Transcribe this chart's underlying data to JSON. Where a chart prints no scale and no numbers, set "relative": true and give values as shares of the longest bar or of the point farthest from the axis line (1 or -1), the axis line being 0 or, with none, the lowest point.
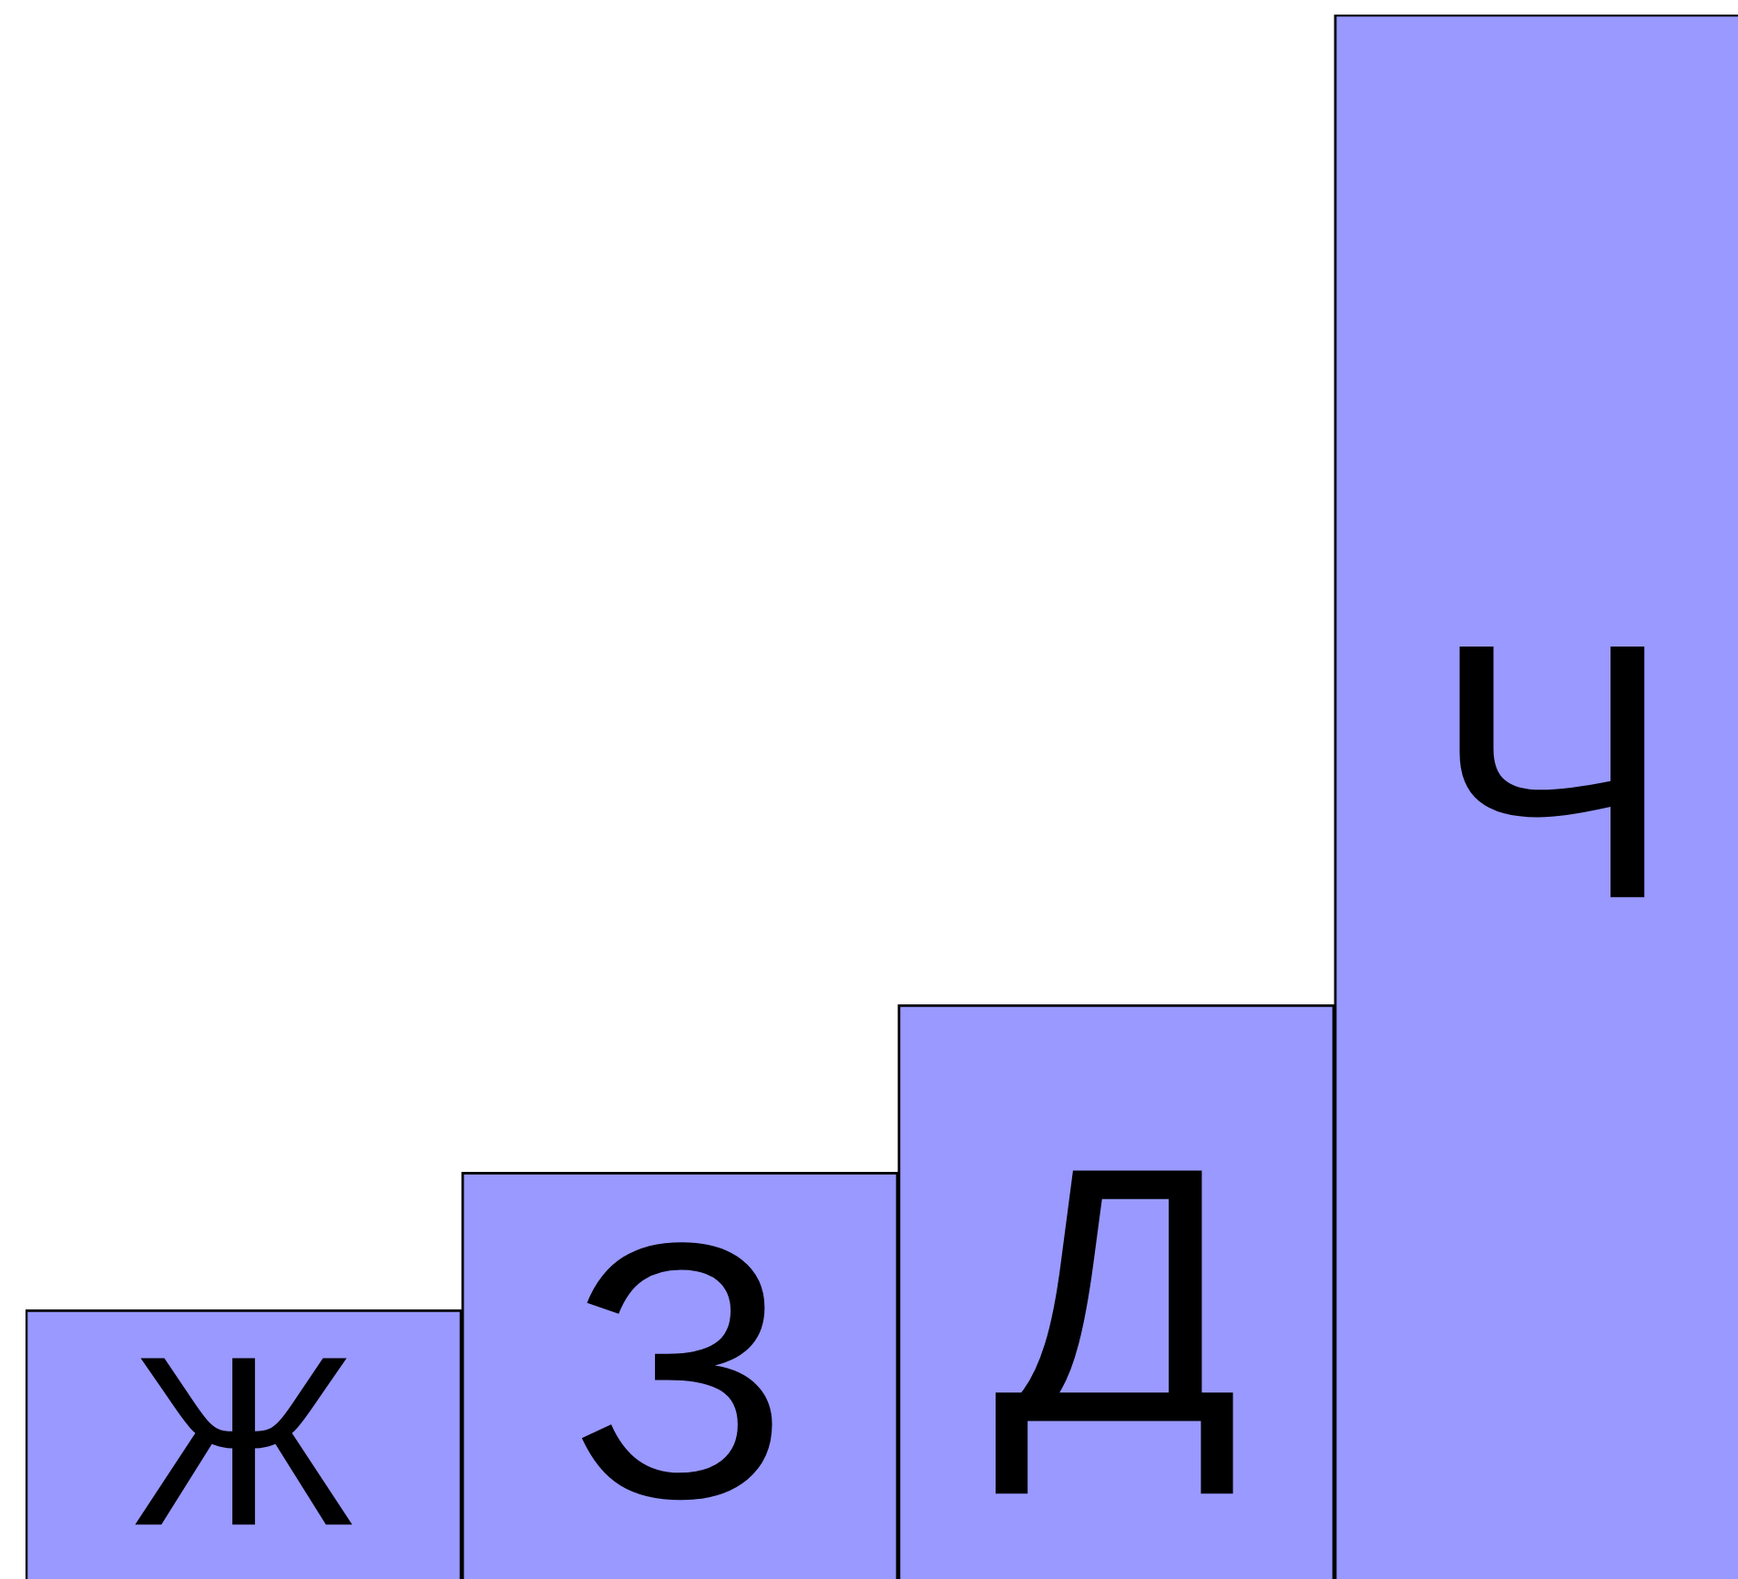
{
  "chart_data": {
    "type": "bar",
    "relative": true,
    "categories": [
      "Ж",
      "З",
      "Д",
      "Ч"
    ],
    "values": [
      0.172,
      0.26,
      0.367,
      1
    ],
    "color": "#9999ff"
  }
}
